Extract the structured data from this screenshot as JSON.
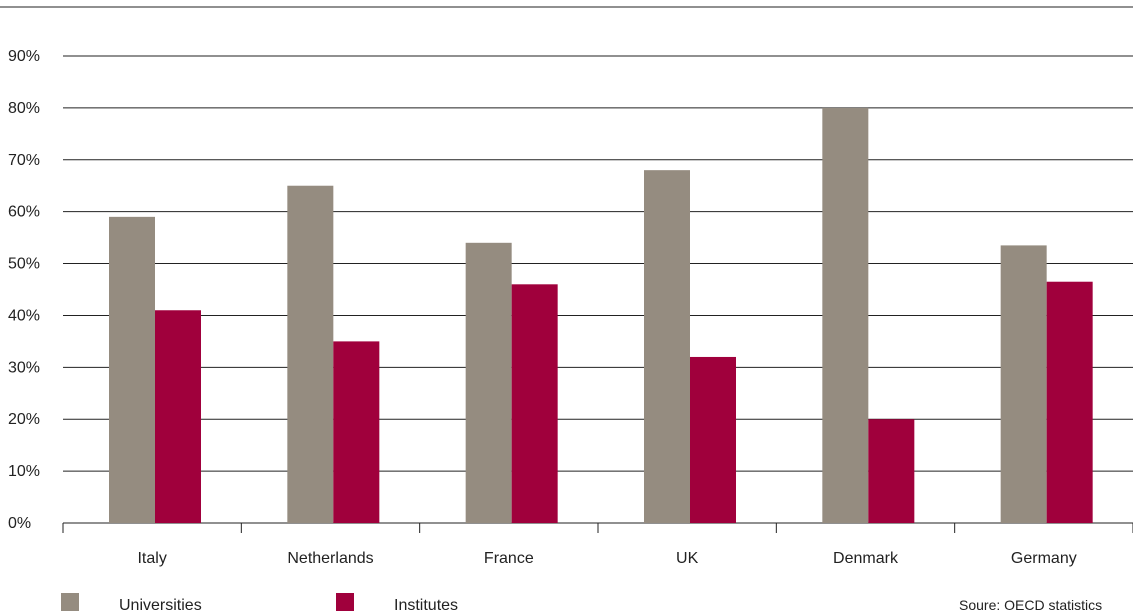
{
  "chart_data": {
    "type": "bar",
    "categories": [
      "Italy",
      "Netherlands",
      "France",
      "UK",
      "Denmark",
      "Germany"
    ],
    "series": [
      {
        "name": "Universities",
        "color": "#958c80",
        "values": [
          59,
          65,
          54,
          68,
          80,
          53.5
        ]
      },
      {
        "name": "Institutes",
        "color": "#a0003c",
        "values": [
          41,
          35,
          46,
          32,
          20,
          46.5
        ]
      }
    ],
    "ylim": [
      0,
      90
    ],
    "ytick_values": [
      0,
      10,
      20,
      30,
      40,
      50,
      60,
      70,
      80,
      90
    ],
    "ytick_labels": [
      "0%",
      "10%",
      "20%",
      "30%",
      "40%",
      "50%",
      "60%",
      "70%",
      "80%",
      "90%"
    ],
    "grid": true,
    "legend_position": "bottom-left",
    "source": "Soure: OECD statistics"
  }
}
